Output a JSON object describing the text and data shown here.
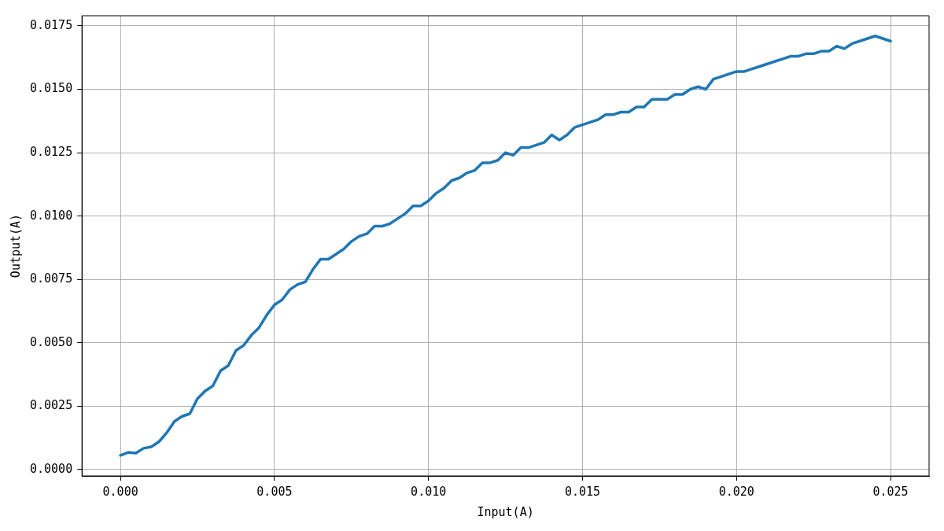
{
  "chart_data": {
    "type": "line",
    "xlabel": "Input(A)",
    "ylabel": "Output(A)",
    "x": [
      0,
      0.00025,
      0.0005,
      0.00075,
      0.001,
      0.00125,
      0.0015,
      0.00175,
      0.002,
      0.00225,
      0.0025,
      0.00275,
      0.003,
      0.00325,
      0.0035,
      0.00375,
      0.004,
      0.00425,
      0.0045,
      0.00475,
      0.005,
      0.00525,
      0.0055,
      0.00575,
      0.006,
      0.00625,
      0.0065,
      0.00675,
      0.007,
      0.00725,
      0.0075,
      0.00775,
      0.008,
      0.00825,
      0.0085,
      0.00875,
      0.009,
      0.00925,
      0.0095,
      0.00975,
      0.01,
      0.01025,
      0.0105,
      0.01075,
      0.011,
      0.01125,
      0.0115,
      0.01175,
      0.012,
      0.01225,
      0.0125,
      0.01275,
      0.013,
      0.01325,
      0.0135,
      0.01375,
      0.014,
      0.01425,
      0.0145,
      0.01475,
      0.015,
      0.01525,
      0.0155,
      0.01575,
      0.016,
      0.01625,
      0.0165,
      0.01675,
      0.017,
      0.01725,
      0.0175,
      0.01775,
      0.018,
      0.01825,
      0.0185,
      0.01875,
      0.019,
      0.01925,
      0.0195,
      0.01975,
      0.02,
      0.02025,
      0.0205,
      0.02075,
      0.021,
      0.02125,
      0.0215,
      0.02175,
      0.022,
      0.02225,
      0.0225,
      0.02275,
      0.023,
      0.02325,
      0.0235,
      0.02375,
      0.024,
      0.02425,
      0.0245,
      0.02475,
      0.025
    ],
    "series": [
      {
        "color": "#1f77b4",
        "values": [
          0.00056,
          0.00068,
          0.00065,
          0.00084,
          0.0009,
          0.0011,
          0.00145,
          0.0019,
          0.0021,
          0.0022,
          0.0028,
          0.0031,
          0.0033,
          0.0039,
          0.0041,
          0.0047,
          0.0049,
          0.0053,
          0.0056,
          0.0061,
          0.0065,
          0.0067,
          0.0071,
          0.0073,
          0.0074,
          0.0079,
          0.0083,
          0.0083,
          0.0085,
          0.0087,
          0.009,
          0.0092,
          0.0093,
          0.0096,
          0.0096,
          0.0097,
          0.0099,
          0.0101,
          0.0104,
          0.0104,
          0.0106,
          0.0109,
          0.0111,
          0.0114,
          0.0115,
          0.0117,
          0.0118,
          0.0121,
          0.0121,
          0.0122,
          0.0125,
          0.0124,
          0.0127,
          0.0127,
          0.0128,
          0.0129,
          0.0132,
          0.013,
          0.0132,
          0.0135,
          0.0136,
          0.0137,
          0.0138,
          0.014,
          0.014,
          0.0141,
          0.0141,
          0.0143,
          0.0143,
          0.0146,
          0.0146,
          0.0146,
          0.0148,
          0.0148,
          0.015,
          0.0151,
          0.015,
          0.0154,
          0.0155,
          0.0156,
          0.0157,
          0.0157,
          0.0158,
          0.0159,
          0.016,
          0.0161,
          0.0162,
          0.0163,
          0.0163,
          0.0164,
          0.0164,
          0.0165,
          0.0165,
          0.0167,
          0.0166,
          0.0168,
          0.0169,
          0.017,
          0.0171,
          0.017,
          0.0169
        ]
      }
    ],
    "xlim": [
      -0.00125,
      0.02625
    ],
    "xticks": [
      {
        "value": 0,
        "label": "0.000"
      },
      {
        "value": 0.005,
        "label": "0.005"
      },
      {
        "value": 0.01,
        "label": "0.010"
      },
      {
        "value": 0.015,
        "label": "0.015"
      },
      {
        "value": 0.02,
        "label": "0.020"
      },
      {
        "value": 0.025,
        "label": "0.025"
      }
    ],
    "ylim": [
      -0.00025,
      0.0179
    ],
    "yticks": [
      {
        "value": 0,
        "label": "0.0000"
      },
      {
        "value": 0.0025,
        "label": "0.0025"
      },
      {
        "value": 0.005,
        "label": "0.0050"
      },
      {
        "value": 0.0075,
        "label": "0.0075"
      },
      {
        "value": 0.01,
        "label": "0.0100"
      },
      {
        "value": 0.0125,
        "label": "0.0125"
      },
      {
        "value": 0.015,
        "label": "0.0150"
      },
      {
        "value": 0.0175,
        "label": "0.0175"
      }
    ],
    "grid": true,
    "legend": false,
    "marker": "none",
    "line_style": "solid"
  }
}
